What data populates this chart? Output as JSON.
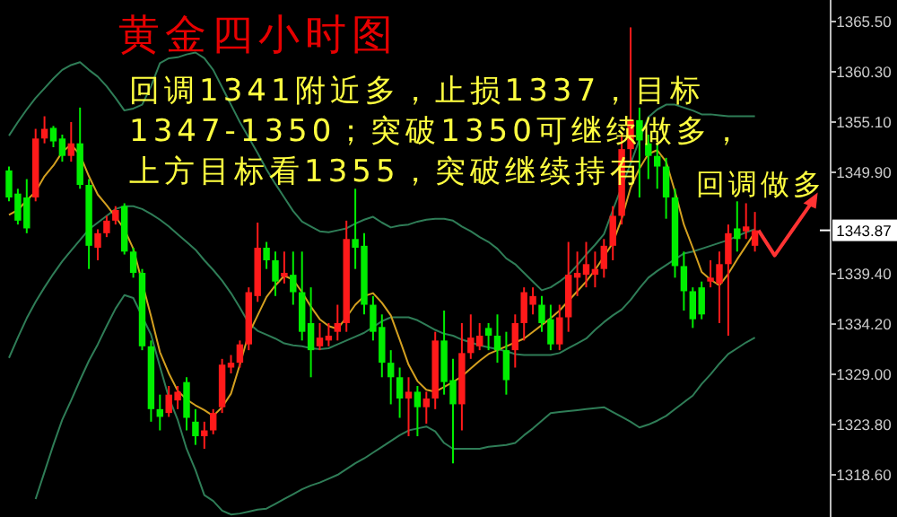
{
  "chart_data": {
    "type": "candlestick",
    "title": "黄金四小时图",
    "annotations": [
      "回调1341附近多，止损1337，目标",
      "1347-1350；突破1350可继续做多，",
      "上方目标看1355，突破继续持有",
      "回调做多",
      "1343.87"
    ],
    "categories": [
      null,
      null,
      null,
      null,
      null,
      null,
      null,
      null,
      null,
      null,
      null,
      null,
      null,
      null,
      null,
      null,
      null,
      null,
      null,
      null,
      null,
      null,
      null,
      null,
      null,
      null,
      null,
      null,
      null,
      null,
      null,
      null,
      null,
      null,
      null,
      null,
      null,
      null,
      null,
      null,
      null,
      null,
      null,
      null,
      null,
      null,
      null,
      null,
      null,
      null,
      null,
      null,
      null,
      null,
      null,
      null,
      null,
      null,
      null,
      null,
      null,
      null,
      null,
      null,
      null,
      null,
      null,
      null,
      null,
      null,
      null,
      null,
      null,
      null,
      null,
      null,
      null,
      null,
      null,
      null,
      null,
      null,
      null,
      null,
      null
    ],
    "ohlc": [
      [
        1350.1,
        1350.5,
        1346.9,
        1347.3
      ],
      [
        1347.7,
        1348.2,
        1344.5,
        1344.9
      ],
      [
        1347.3,
        1349.2,
        1343.6,
        1344.1
      ],
      [
        1347.3,
        1354.4,
        1346.9,
        1353.4
      ],
      [
        1353.4,
        1355.7,
        1352.9,
        1354.4
      ],
      [
        1354.5,
        1354.7,
        1352.5,
        1353.1
      ],
      [
        1353.4,
        1353.8,
        1351.0,
        1351.6
      ],
      [
        1351.6,
        1355.1,
        1351.0,
        1352.9
      ],
      [
        1352.9,
        1356.6,
        1348.2,
        1348.6
      ],
      [
        1348.6,
        1349.2,
        1339.9,
        1342.3
      ],
      [
        1342.1,
        1344.0,
        1340.8,
        1343.6
      ],
      [
        1343.6,
        1345.4,
        1343.2,
        1344.9
      ],
      [
        1344.9,
        1346.4,
        1344.5,
        1346.0
      ],
      [
        1346.4,
        1346.7,
        1341.4,
        1341.7
      ],
      [
        1341.7,
        1342.1,
        1339.0,
        1339.5
      ],
      [
        1339.5,
        1339.9,
        1331.5,
        1331.9
      ],
      [
        1331.9,
        1332.5,
        1324.1,
        1325.4
      ],
      [
        1325.4,
        1326.9,
        1323.2,
        1324.6
      ],
      [
        1325.0,
        1327.8,
        1324.6,
        1326.9
      ],
      [
        1326.3,
        1327.8,
        1325.4,
        1327.2
      ],
      [
        1328.2,
        1328.7,
        1323.2,
        1324.5
      ],
      [
        1324.1,
        1325.4,
        1321.7,
        1322.6
      ],
      [
        1322.6,
        1324.1,
        1321.3,
        1323.2
      ],
      [
        1323.2,
        1325.4,
        1322.8,
        1325.0
      ],
      [
        1325.6,
        1330.6,
        1325.0,
        1330.0
      ],
      [
        1329.7,
        1331.0,
        1329.1,
        1330.2
      ],
      [
        1330.2,
        1332.5,
        1329.7,
        1332.1
      ],
      [
        1332.1,
        1338.0,
        1331.5,
        1337.5
      ],
      [
        1337.1,
        1344.7,
        1336.5,
        1342.1
      ],
      [
        1342.1,
        1342.7,
        1339.9,
        1340.8
      ],
      [
        1340.8,
        1341.7,
        1337.1,
        1338.6
      ],
      [
        1339.1,
        1341.7,
        1338.4,
        1339.5
      ],
      [
        1339.3,
        1341.7,
        1336.2,
        1337.5
      ],
      [
        1337.5,
        1341.7,
        1332.5,
        1333.4
      ],
      [
        1334.3,
        1338.0,
        1328.7,
        1331.5
      ],
      [
        1331.9,
        1334.3,
        1331.5,
        1332.8
      ],
      [
        1332.5,
        1334.3,
        1331.9,
        1333.0
      ],
      [
        1333.4,
        1336.2,
        1332.5,
        1334.3
      ],
      [
        1334.3,
        1344.9,
        1333.4,
        1343.0
      ],
      [
        1343.0,
        1348.2,
        1339.9,
        1342.1
      ],
      [
        1342.3,
        1343.6,
        1335.2,
        1336.2
      ],
      [
        1336.2,
        1337.1,
        1332.5,
        1333.4
      ],
      [
        1333.9,
        1335.2,
        1328.7,
        1330.2
      ],
      [
        1330.2,
        1331.5,
        1325.9,
        1328.7
      ],
      [
        1328.7,
        1329.7,
        1324.5,
        1326.5
      ],
      [
        1326.5,
        1328.7,
        1322.6,
        1327.2
      ],
      [
        1327.2,
        1327.8,
        1322.6,
        1325.6
      ],
      [
        1325.6,
        1327.2,
        1323.9,
        1326.5
      ],
      [
        1326.5,
        1333.4,
        1325.4,
        1332.5
      ],
      [
        1332.5,
        1335.6,
        1326.9,
        1328.2
      ],
      [
        1328.4,
        1330.6,
        1319.8,
        1325.9
      ],
      [
        1325.9,
        1334.3,
        1323.2,
        1331.2
      ],
      [
        1331.2,
        1335.2,
        1330.6,
        1332.8
      ],
      [
        1331.9,
        1334.3,
        1331.5,
        1333.0
      ],
      [
        1333.8,
        1334.3,
        1331.5,
        1333.0
      ],
      [
        1333.0,
        1335.2,
        1330.2,
        1331.5
      ],
      [
        1331.5,
        1333.4,
        1326.9,
        1328.4
      ],
      [
        1331.5,
        1335.2,
        1329.7,
        1334.3
      ],
      [
        1334.3,
        1338.0,
        1332.5,
        1337.5
      ],
      [
        1336.2,
        1338.0,
        1335.2,
        1337.1
      ],
      [
        1336.2,
        1337.1,
        1333.4,
        1334.3
      ],
      [
        1334.7,
        1336.2,
        1331.5,
        1332.1
      ],
      [
        1332.1,
        1336.2,
        1331.5,
        1334.9
      ],
      [
        1334.9,
        1342.7,
        1333.4,
        1339.3
      ],
      [
        1339.0,
        1341.7,
        1337.1,
        1339.5
      ],
      [
        1339.3,
        1342.7,
        1338.0,
        1340.4
      ],
      [
        1339.3,
        1341.7,
        1338.0,
        1339.9
      ],
      [
        1339.9,
        1343.0,
        1339.0,
        1342.3
      ],
      [
        1342.3,
        1346.4,
        1340.8,
        1345.4
      ],
      [
        1345.4,
        1353.8,
        1344.5,
        1352.3
      ],
      [
        1352.3,
        1364.9,
        1351.0,
        1355.3
      ],
      [
        1355.3,
        1356.6,
        1347.3,
        1353.2
      ],
      [
        1352.9,
        1353.8,
        1349.2,
        1351.6
      ],
      [
        1351.6,
        1352.9,
        1348.2,
        1350.5
      ],
      [
        1350.5,
        1351.4,
        1345.1,
        1347.3
      ],
      [
        1347.3,
        1348.2,
        1339.0,
        1340.2
      ],
      [
        1340.2,
        1341.7,
        1335.6,
        1337.6
      ],
      [
        1337.6,
        1338.0,
        1333.8,
        1334.7
      ],
      [
        1338.0,
        1338.6,
        1334.7,
        1335.2
      ],
      [
        1338.6,
        1340.8,
        1338.0,
        1339.0
      ],
      [
        1338.4,
        1341.7,
        1334.3,
        1340.4
      ],
      [
        1340.4,
        1344.5,
        1333.0,
        1343.6
      ],
      [
        1344.1,
        1346.9,
        1341.7,
        1343.0
      ],
      [
        1343.8,
        1346.7,
        1343.0,
        1344.3
      ],
      [
        1342.3,
        1345.8,
        1341.7,
        1343.9
      ]
    ],
    "series": [
      {
        "type": "line",
        "color": "#2f7d57",
        "values": [
          1353.7,
          1355.1,
          1356.4,
          1357.6,
          1358.6,
          1359.6,
          1360.5,
          1361.0,
          1361.3,
          1360.5,
          1359.8,
          1358.8,
          1357.6,
          1356.3,
          1356.5,
          1356.9,
          1358.8,
          1361.2,
          1361.7,
          1361.8,
          1362.1,
          1362.3,
          1361.7,
          1360.5,
          1358.7,
          1356.9,
          1355.1,
          1353.5,
          1351.9,
          1350.2,
          1348.7,
          1347.3,
          1345.9,
          1344.8,
          1344.3,
          1343.8,
          1343.7,
          1343.9,
          1344.1,
          1344.6,
          1345.0,
          1345.3,
          1344.7,
          1344.2,
          1344.4,
          1344.5,
          1344.8,
          1345.0,
          1345.1,
          1345.1,
          1344.9,
          1344.3,
          1343.8,
          1343.2,
          1342.7,
          1342.0,
          1341.0,
          1340.4,
          1339.5,
          1338.6,
          1337.7,
          1338.0,
          1338.6,
          1339.3,
          1340.3,
          1341.4,
          1342.4,
          1343.5,
          1346.0,
          1348.4,
          1350.8,
          1353.3,
          1355.6,
          1356.4,
          1356.9,
          1356.9,
          1356.6,
          1356.3,
          1355.9,
          1355.9,
          1355.8,
          1355.7,
          1355.7,
          1355.7,
          1355.7
        ]
      },
      {
        "type": "line",
        "color": "#2f7d57",
        "values": [
          1330.7,
          1332.8,
          1334.8,
          1336.5,
          1338.0,
          1339.4,
          1340.7,
          1341.8,
          1342.9,
          1344.0,
          1344.7,
          1345.4,
          1346.1,
          1346.4,
          1346.4,
          1346.1,
          1345.6,
          1345.0,
          1344.3,
          1343.5,
          1342.7,
          1341.9,
          1340.8,
          1339.8,
          1338.7,
          1337.4,
          1335.9,
          1334.3,
          1333.5,
          1333.1,
          1332.7,
          1332.2,
          1332.0,
          1331.9,
          1331.7,
          1331.6,
          1331.7,
          1332.1,
          1332.5,
          1332.9,
          1333.3,
          1333.9,
          1334.5,
          1334.9,
          1334.9,
          1334.9,
          1334.6,
          1334.1,
          1333.6,
          1333.2,
          1333.0,
          1332.6,
          1332.3,
          1332.0,
          1331.8,
          1331.6,
          1331.4,
          1331.1,
          1331.0,
          1331.0,
          1331.0,
          1331.0,
          1331.2,
          1331.7,
          1332.2,
          1332.7,
          1333.6,
          1334.4,
          1335.1,
          1335.7,
          1336.7,
          1337.9,
          1339.0,
          1339.7,
          1340.3,
          1340.9,
          1341.5,
          1341.7,
          1342.0,
          1342.3,
          1342.6,
          1342.9,
          1343.3,
          1343.7,
          1344.0
        ]
      },
      {
        "type": "line",
        "color": "#2f7d57",
        "values": [
          null,
          null,
          null,
          1316.1,
          1318.9,
          1321.7,
          1324.3,
          1326.3,
          1328.4,
          1330.4,
          1332.1,
          1334.0,
          1335.8,
          1337.2,
          1336.9,
          1335.0,
          1333.1,
          1329.8,
          1326.6,
          1324.3,
          1321.3,
          1319.1,
          1316.5,
          1315.9,
          1314.9,
          1314.5,
          1314.6,
          1314.8,
          1315.0,
          1315.1,
          1315.6,
          1316.1,
          1316.6,
          1317.1,
          1317.5,
          1317.8,
          1318.2,
          1318.6,
          1319.2,
          1319.8,
          1320.3,
          1320.9,
          1321.5,
          1322.1,
          1322.7,
          1323.2,
          1323.4,
          1323.6,
          1323.1,
          1321.9,
          1321.3,
          1321.3,
          1321.3,
          1321.3,
          1321.5,
          1321.6,
          1321.7,
          1321.9,
          1322.7,
          1323.4,
          1324.2,
          1325.0,
          1325.1,
          1325.2,
          1325.3,
          1325.4,
          1325.5,
          1325.6,
          1325.1,
          1324.6,
          1324.1,
          1323.5,
          1323.8,
          1324.2,
          1324.7,
          1325.4,
          1326.1,
          1326.8,
          1328.0,
          1329.0,
          1330.1,
          1331.1,
          1331.7,
          1332.3,
          1332.8
        ]
      },
      {
        "type": "line",
        "color": "#d4a020",
        "values": [
          1345.5,
          1346.0,
          1347.0,
          1347.9,
          1349.5,
          1350.6,
          1352.0,
          1352.8,
          1351.7,
          1349.5,
          1347.6,
          1346.5,
          1345.3,
          1344.0,
          1342.0,
          null,
          1335.0,
          1331.3,
          1329.1,
          1327.3,
          1326.4,
          1325.8,
          1325.3,
          1324.7,
          1325.6,
          1327.0,
          1330.0,
          1333.2,
          1335.1,
          1337.0,
          1338.2,
          1339.2,
          1338.8,
          1337.5,
          1336.0,
          1334.7,
          1334.0,
          1333.7,
          1334.9,
          1336.2,
          1337.1,
          1337.4,
          1336.4,
          1335.1,
          1332.6,
          1330.0,
          1328.3,
          1327.4,
          1327.2,
          1327.7,
          1328.2,
          1328.8,
          1329.6,
          1330.4,
          1331.1,
          1331.5,
          1331.9,
          1332.3,
          1332.7,
          1333.4,
          1334.1,
          1334.8,
          1335.6,
          1336.6,
          1337.6,
          1338.6,
          1339.8,
          1341.2,
          1342.6,
          1345.1,
          1348.3,
          1350.3,
          1351.8,
          1352.2,
          1351.0,
          1347.9,
          1344.5,
          1342.1,
          1339.6,
          1338.8,
          1338.2,
          1339.4,
          1340.9,
          1342.3,
          1343.7
        ]
      }
    ],
    "ylim": [
      1314.24,
      1367.73
    ],
    "yticks": [
      {
        "value": 1365.5,
        "label": "1365.50"
      },
      {
        "value": 1360.3,
        "label": "1360.30"
      },
      {
        "value": 1355.1,
        "label": "1355.10"
      },
      {
        "value": 1349.9,
        "label": "1349.90"
      },
      {
        "value": 1339.4,
        "label": "1339.40"
      },
      {
        "value": 1334.2,
        "label": "1334.20"
      },
      {
        "value": 1329.0,
        "label": "1329.00"
      },
      {
        "value": 1323.8,
        "label": "1323.80"
      },
      {
        "value": 1318.6,
        "label": "1318.60"
      }
    ],
    "tick_labels": "y"
  }
}
